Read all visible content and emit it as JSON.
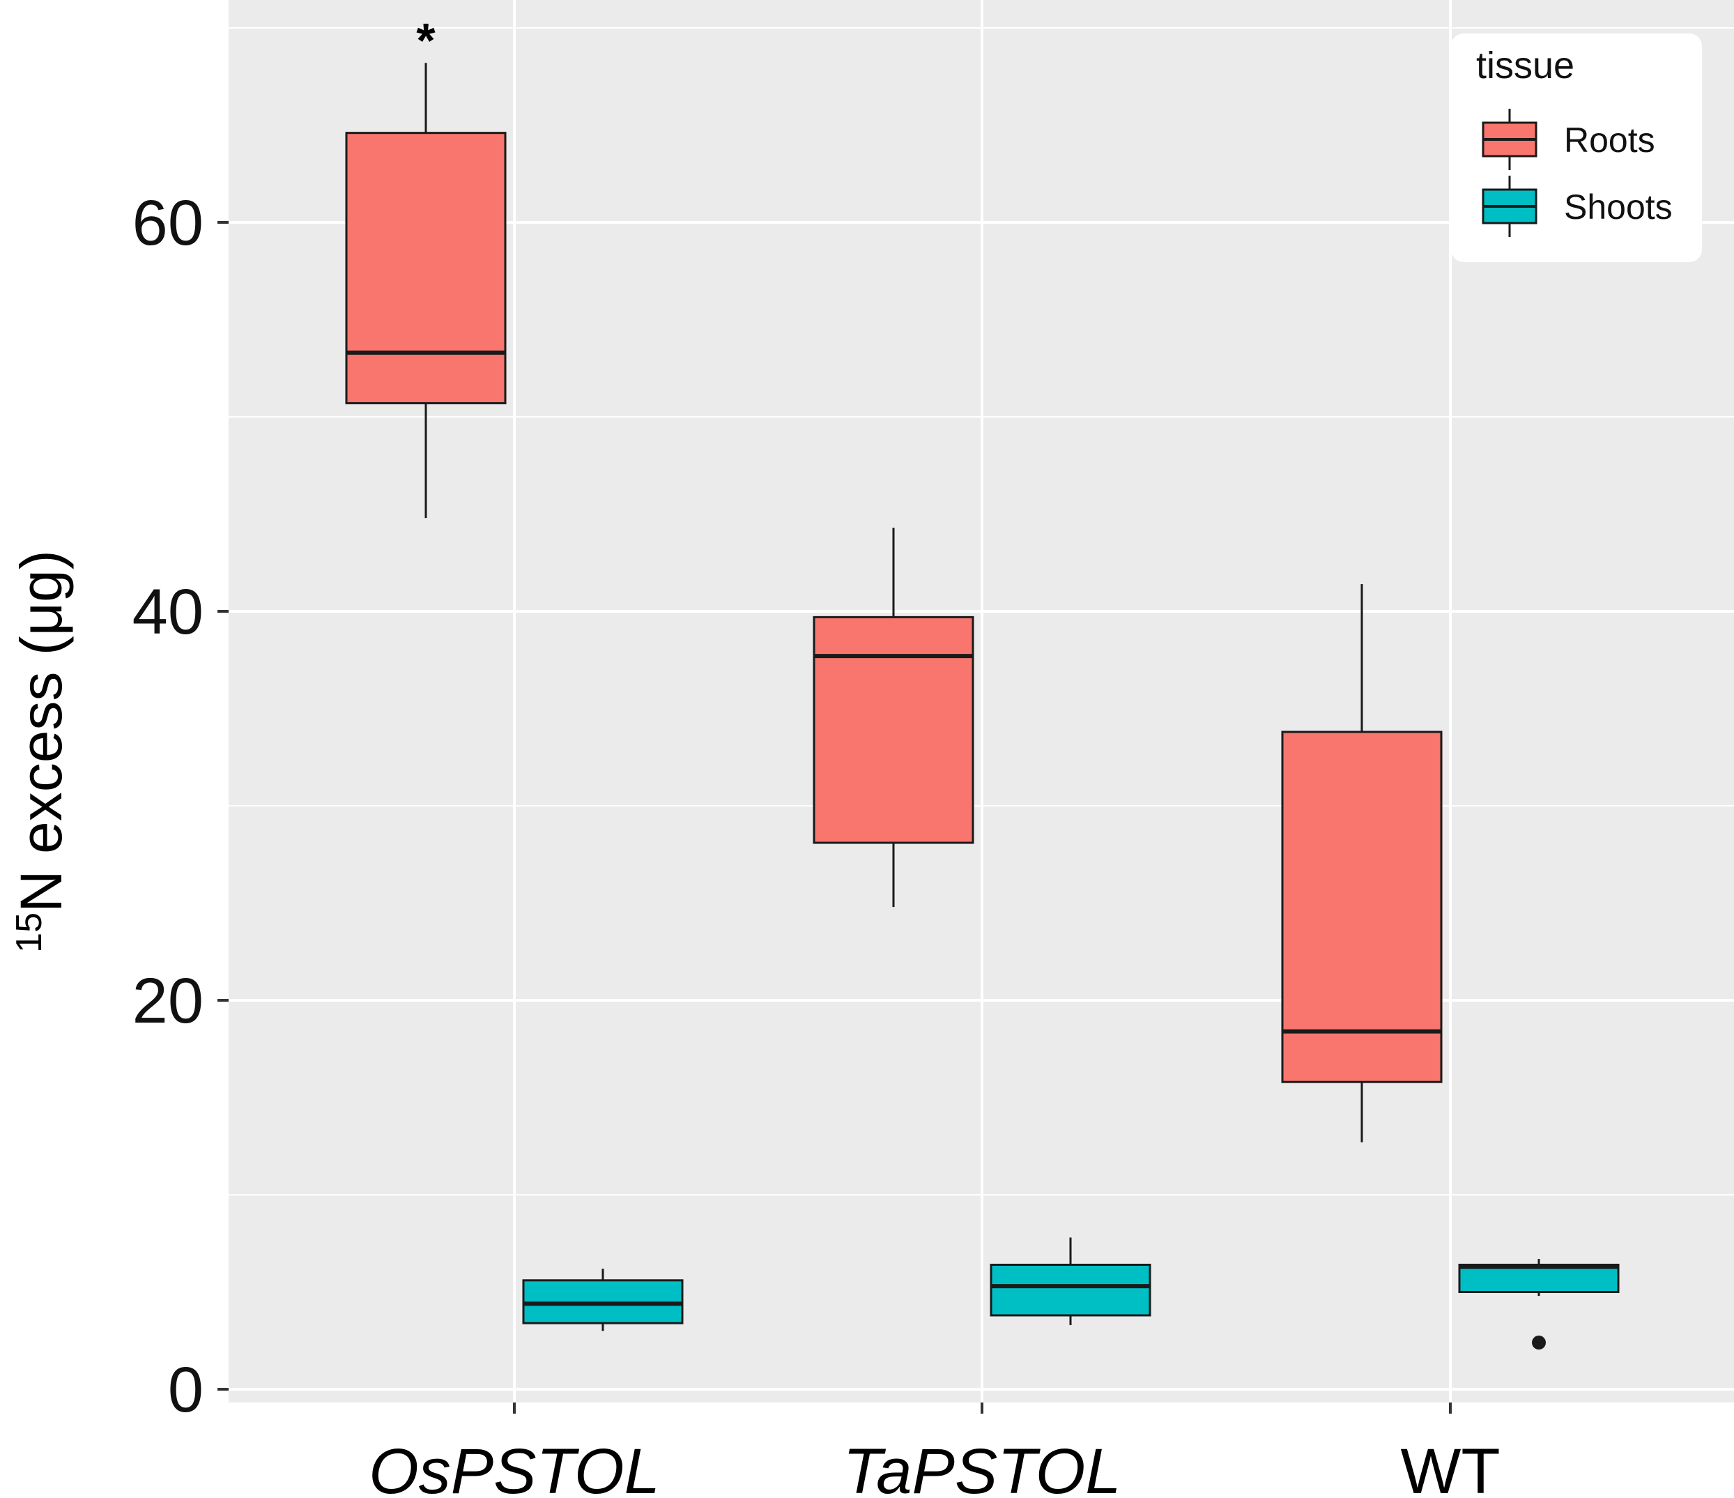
{
  "chart_data": {
    "type": "boxplot",
    "title": "",
    "xlabel": "",
    "ylabel": {
      "sup": "15",
      "main": "N excess (μg)"
    },
    "ylim": [
      -0.5,
      70.5
    ],
    "yticks": [
      0,
      20,
      40,
      60
    ],
    "ytick_labels": [
      "0",
      "20",
      "40",
      "60"
    ],
    "categories": [
      "OsPSTOL",
      "TaPSTOL",
      "WT"
    ],
    "categories_italic": [
      true,
      true,
      false
    ],
    "legend": {
      "title": "tissue",
      "position": "top-right"
    },
    "colors": {
      "Roots": "#F8766D",
      "Shoots": "#00BFC4",
      "panel": "#EBEBEB",
      "grid": "#FFFFFF"
    },
    "series": [
      {
        "name": "Roots",
        "boxes": [
          {
            "lower_whisker": 44.8,
            "q1": 50.7,
            "median": 53.3,
            "q3": 64.6,
            "upper_whisker": 68.2,
            "outliers": []
          },
          {
            "lower_whisker": 24.8,
            "q1": 28.1,
            "median": 37.7,
            "q3": 39.7,
            "upper_whisker": 44.3,
            "outliers": []
          },
          {
            "lower_whisker": 12.7,
            "q1": 15.8,
            "median": 18.4,
            "q3": 33.8,
            "upper_whisker": 41.4,
            "outliers": []
          }
        ]
      },
      {
        "name": "Shoots",
        "boxes": [
          {
            "lower_whisker": 3.0,
            "q1": 3.4,
            "median": 4.4,
            "q3": 5.6,
            "upper_whisker": 6.2,
            "outliers": []
          },
          {
            "lower_whisker": 3.3,
            "q1": 3.8,
            "median": 5.3,
            "q3": 6.4,
            "upper_whisker": 7.8,
            "outliers": []
          },
          {
            "lower_whisker": 4.8,
            "q1": 5.0,
            "median": 6.3,
            "q3": 6.4,
            "upper_whisker": 6.7,
            "outliers": [
              2.4
            ]
          }
        ]
      }
    ],
    "annotations": [
      {
        "text": "*",
        "category": "OsPSTOL",
        "series": "Roots"
      }
    ]
  }
}
